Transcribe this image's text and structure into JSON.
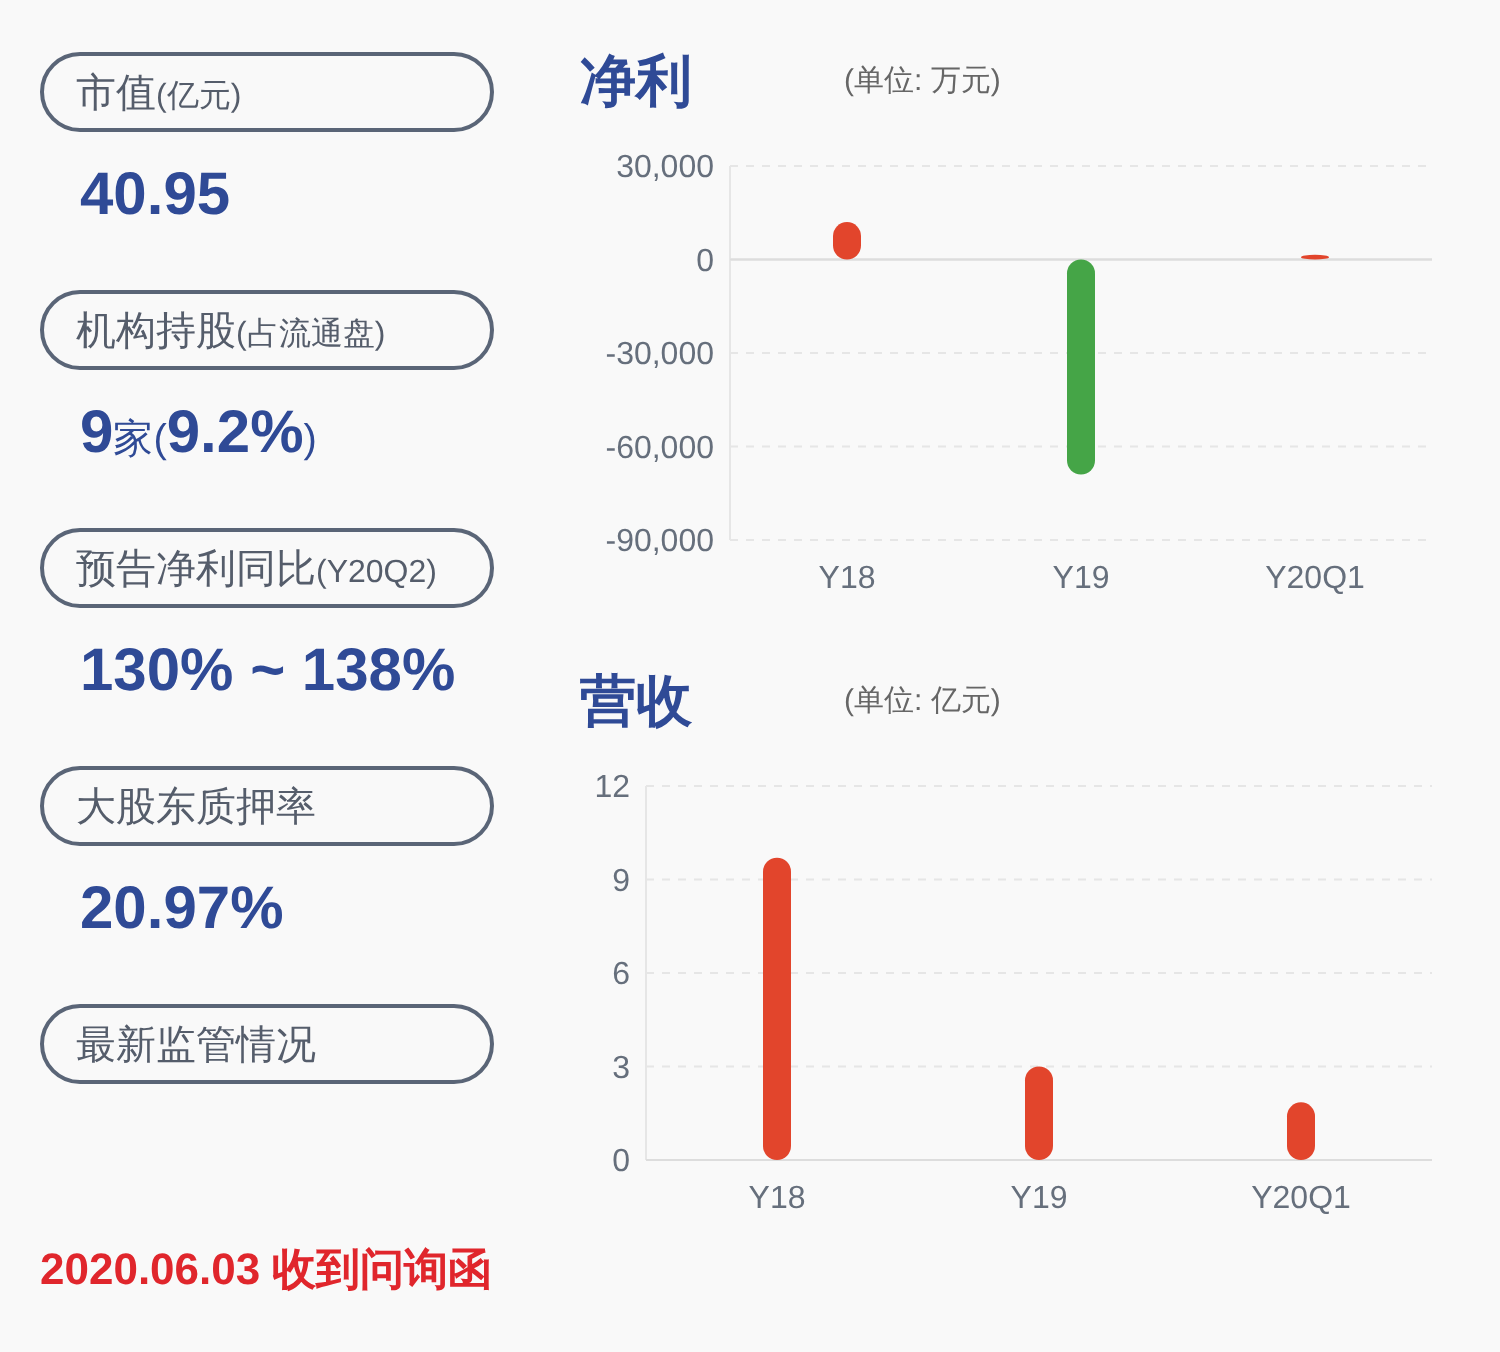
{
  "chart_data": [
    {
      "type": "other",
      "annotations": [
        "市值(亿元)",
        "40.95",
        "机构持股(占流通盘)",
        "9家(9.2%)",
        "预告净利同比(Y20Q2)",
        "130% ~ 138%",
        "大股东质押率",
        "20.97%",
        "最新监管情况",
        "2020.06.03 收到问询函"
      ]
    },
    {
      "type": "bar",
      "title": "净利",
      "subtitle": "(单位: 万元)",
      "categories": [
        "Y18",
        "Y19",
        "Y20Q1"
      ],
      "values": [
        12000,
        -69000,
        1500
      ],
      "colors": [
        "#e2452c",
        "#45a547",
        "#e2452c"
      ],
      "ylim": [
        -90000,
        30000
      ],
      "yticks": [
        {
          "value": -90000,
          "label": "-90,000"
        },
        {
          "value": -60000,
          "label": "-60,000"
        },
        {
          "value": -30000,
          "label": "-30,000"
        },
        0,
        {
          "value": 30000,
          "label": "30,000"
        }
      ],
      "grid": "y"
    },
    {
      "type": "bar",
      "title": "营收",
      "subtitle": "(单位: 亿元)",
      "categories": [
        "Y18",
        "Y19",
        "Y20Q1"
      ],
      "values": [
        9.7,
        3.0,
        1.85
      ],
      "colors": [
        "#e2452c",
        "#e2452c",
        "#e2452c"
      ],
      "ylim": [
        0,
        12
      ],
      "yticks": [
        0,
        3,
        6,
        9,
        12
      ],
      "grid": "y"
    }
  ]
}
